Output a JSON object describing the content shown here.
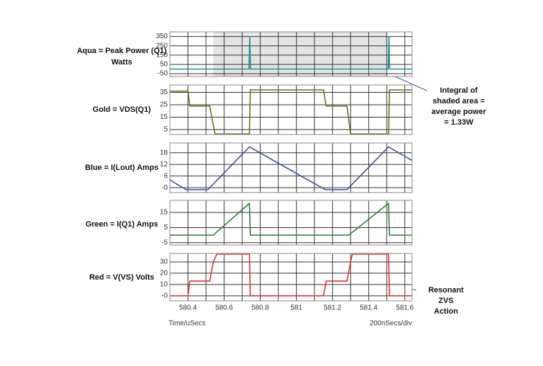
{
  "chart_data": [
    {
      "type": "line",
      "label": [
        "Aqua = Peak Power (Q1)",
        "Watts"
      ],
      "xlim": [
        580.3,
        581.64
      ],
      "ylim": [
        -80,
        400
      ],
      "yticks": [
        350,
        250,
        150,
        50,
        -50
      ],
      "grid": true,
      "shade": [
        580.54,
        581.5
      ],
      "series": [
        {
          "name": "Aqua",
          "color": "#1f8f8f",
          "x": [
            580.3,
            580.535,
            580.738,
            580.742,
            580.746,
            581.508,
            581.512,
            581.516,
            581.64
          ],
          "values": [
            0,
            0,
            0,
            350,
            0,
            0,
            350,
            0,
            0
          ]
        }
      ]
    },
    {
      "type": "line",
      "label": [
        "Gold = VDS(Q1)"
      ],
      "xlim": [
        580.3,
        581.64
      ],
      "ylim": [
        1,
        41
      ],
      "yticks": [
        35,
        25,
        15,
        5
      ],
      "grid": true,
      "series": [
        {
          "name": "Gold",
          "color": "#6b6b1e",
          "x": [
            580.3,
            580.4,
            580.41,
            580.52,
            580.55,
            580.74,
            580.745,
            581.15,
            581.165,
            581.28,
            581.3,
            581.51,
            581.515,
            581.64
          ],
          "values": [
            36,
            36,
            24,
            24,
            1.5,
            1.5,
            37,
            37,
            24,
            24,
            1.5,
            1.5,
            37,
            37
          ]
        }
      ]
    },
    {
      "type": "line",
      "label": [
        "Blue = I(Lout) Amps"
      ],
      "xlim": [
        580.3,
        581.64
      ],
      "ylim": [
        -2.5,
        23
      ],
      "yticks": [
        18,
        12,
        6,
        {
          "value": 0,
          "label": "-0"
        }
      ],
      "grid": true,
      "series": [
        {
          "name": "Blue",
          "color": "#3a4fa8",
          "x": [
            580.3,
            580.39,
            580.51,
            580.74,
            581.16,
            581.28,
            581.51,
            581.64
          ],
          "values": [
            4,
            -1,
            -1,
            21,
            -1,
            -1,
            21,
            14
          ]
        }
      ]
    },
    {
      "type": "line",
      "label": [
        "Green = I(Q1) Amps"
      ],
      "xlim": [
        580.3,
        581.64
      ],
      "ylim": [
        -6.5,
        23
      ],
      "yticks": [
        15,
        5,
        -5
      ],
      "grid": true,
      "series": [
        {
          "name": "Green",
          "color": "#2e7d32",
          "x": [
            580.3,
            580.54,
            580.74,
            580.745,
            581.29,
            581.51,
            581.515,
            581.64
          ],
          "values": [
            0,
            0,
            21,
            0,
            0,
            21,
            0,
            0
          ]
        }
      ]
    },
    {
      "type": "line",
      "label": [
        "Red = V(VS) Volts"
      ],
      "xlim": [
        580.3,
        581.64
      ],
      "ylim": [
        -4.5,
        37.5
      ],
      "yticks": [
        30,
        20,
        10,
        {
          "value": 0,
          "label": "-0"
        }
      ],
      "grid": true,
      "xticks": [
        580.4,
        580.6,
        580.8,
        581,
        581.2,
        581.4,
        581.6
      ],
      "xlabel": "Time/uSecs",
      "xnote": "200nSecs/div",
      "series": [
        {
          "name": "Red",
          "color": "#e8302a",
          "x": [
            580.3,
            580.4,
            580.41,
            580.52,
            580.54,
            580.56,
            580.74,
            580.745,
            581.15,
            581.165,
            581.28,
            581.3,
            581.31,
            581.51,
            581.515,
            581.64
          ],
          "values": [
            0,
            0,
            13,
            13,
            30,
            37,
            37,
            0,
            0,
            13,
            13,
            30,
            37,
            37,
            0,
            0
          ]
        }
      ]
    }
  ],
  "annotations": [
    [
      "Integral of",
      "shaded area =",
      "average power",
      "= 1.33W"
    ],
    [
      "Resonant",
      "ZVS",
      "Action"
    ]
  ]
}
